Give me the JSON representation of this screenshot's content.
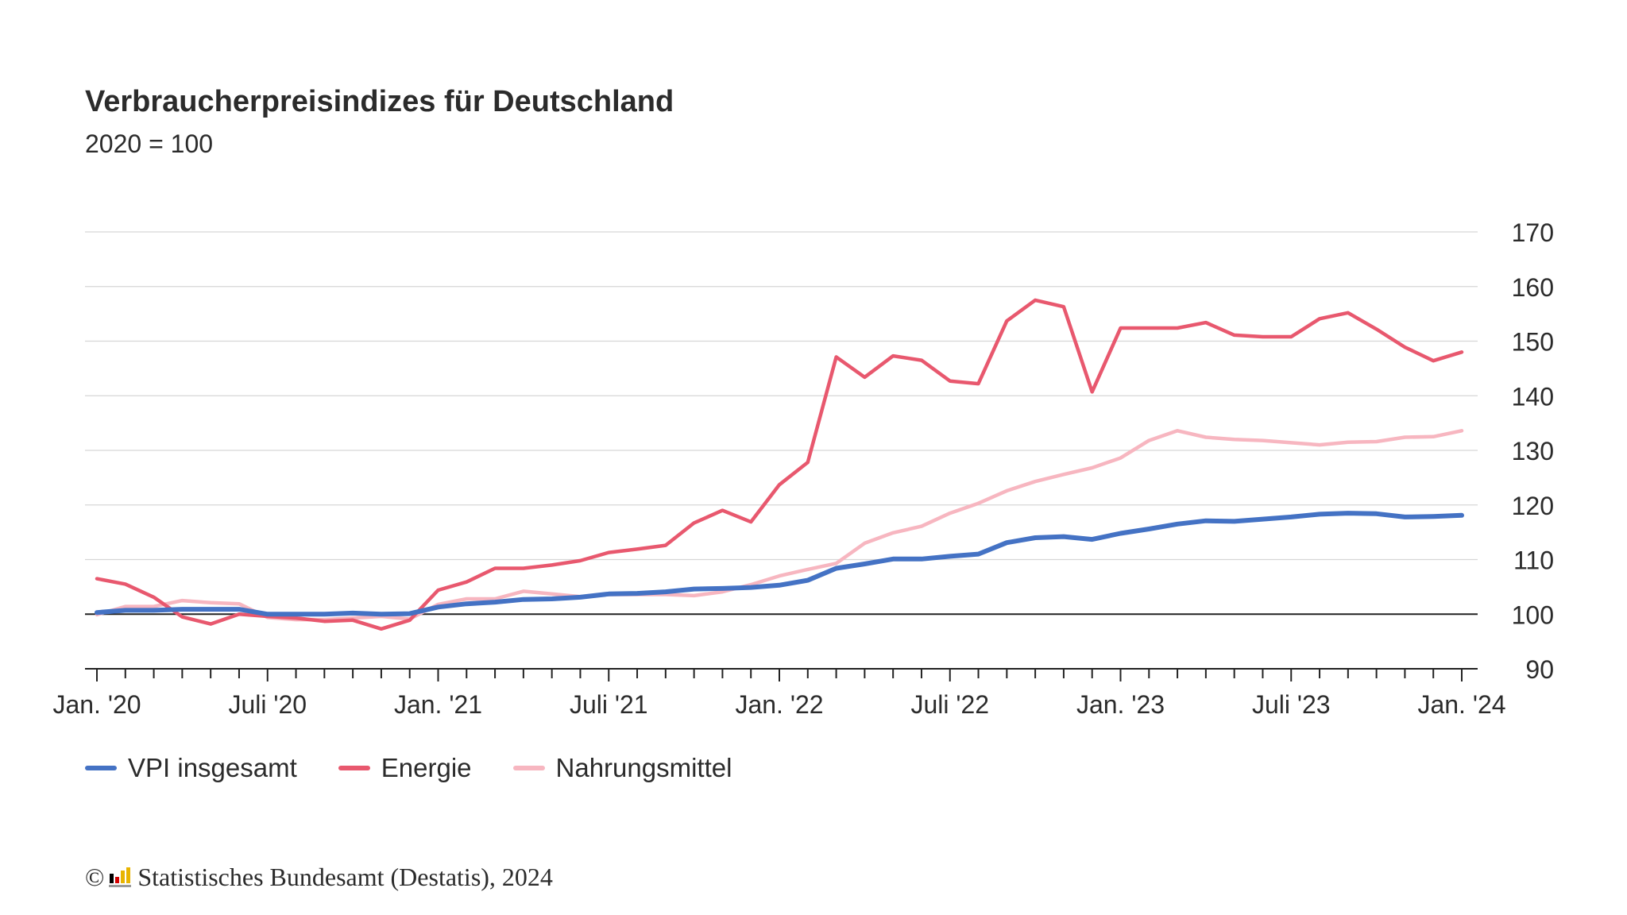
{
  "title": "Verbraucherpreisindizes für Deutschland",
  "subtitle": "2020 = 100",
  "legend": {
    "vpi": "VPI insgesamt",
    "energie": "Energie",
    "nahrung": "Nahrungsmittel"
  },
  "source": {
    "copyright_symbol": "©",
    "text": "Statistisches Bundesamt (Destatis), 2024"
  },
  "chart_data": {
    "type": "line",
    "title": "Verbraucherpreisindizes für Deutschland",
    "subtitle": "2020 = 100",
    "xlabel": "",
    "ylabel": "",
    "ylim": [
      90,
      170
    ],
    "yticks": [
      90,
      100,
      110,
      120,
      130,
      140,
      150,
      160,
      170
    ],
    "x_start": "Jan. '20",
    "x_end": "Jan. '24",
    "x_tick_labels": [
      "Jan. '20",
      "Juli '20",
      "Jan. '21",
      "Juli '21",
      "Jan. '22",
      "Juli '22",
      "Jan. '23",
      "Juli '23",
      "Jan. '24"
    ],
    "x_tick_label_months": [
      0,
      6,
      12,
      18,
      24,
      30,
      36,
      42,
      48
    ],
    "reference_line": 100,
    "grid": true,
    "y_axis_position": "right",
    "legend_position": "bottom-left",
    "series": [
      {
        "name": "VPI insgesamt",
        "color": "#4472c4",
        "values": [
          100.3,
          100.7,
          100.7,
          100.9,
          100.9,
          100.9,
          100.0,
          100.0,
          100.0,
          100.2,
          100.0,
          100.1,
          101.3,
          101.9,
          102.2,
          102.7,
          102.8,
          103.1,
          103.7,
          103.8,
          104.1,
          104.6,
          104.7,
          104.9,
          105.3,
          106.2,
          108.4,
          109.2,
          110.1,
          110.1,
          110.6,
          111.0,
          113.1,
          114.0,
          114.2,
          113.7,
          114.8,
          115.6,
          116.5,
          117.1,
          117.0,
          117.4,
          117.8,
          118.3,
          118.5,
          118.4,
          117.8,
          117.9,
          118.1
        ]
      },
      {
        "name": "Energie",
        "color": "#e8586e",
        "values": [
          106.5,
          105.5,
          103.1,
          99.5,
          98.2,
          100.0,
          99.6,
          99.3,
          98.7,
          98.9,
          97.3,
          98.9,
          104.4,
          105.9,
          108.4,
          108.4,
          109.0,
          109.8,
          111.3,
          111.9,
          112.6,
          116.7,
          119.0,
          116.9,
          123.7,
          127.8,
          147.1,
          143.4,
          147.3,
          146.5,
          142.7,
          142.2,
          153.7,
          157.5,
          156.3,
          140.7,
          152.4,
          152.4,
          152.4,
          153.4,
          151.1,
          150.8,
          150.8,
          154.1,
          155.2,
          152.2,
          148.9,
          146.4,
          148.0
        ]
      },
      {
        "name": "Nahrungsmittel",
        "color": "#f7b6c0",
        "values": [
          99.9,
          101.4,
          101.4,
          102.5,
          102.1,
          101.9,
          99.4,
          99.0,
          99.0,
          99.3,
          99.6,
          99.1,
          101.8,
          102.8,
          102.8,
          104.2,
          103.7,
          103.2,
          103.6,
          103.6,
          103.6,
          103.4,
          104.1,
          105.4,
          107.0,
          108.2,
          109.3,
          113.0,
          114.9,
          116.1,
          118.5,
          120.3,
          122.6,
          124.3,
          125.6,
          126.8,
          128.6,
          131.8,
          133.6,
          132.4,
          132.0,
          131.8,
          131.4,
          131.0,
          131.5,
          131.6,
          132.4,
          132.5,
          133.6
        ]
      }
    ]
  }
}
